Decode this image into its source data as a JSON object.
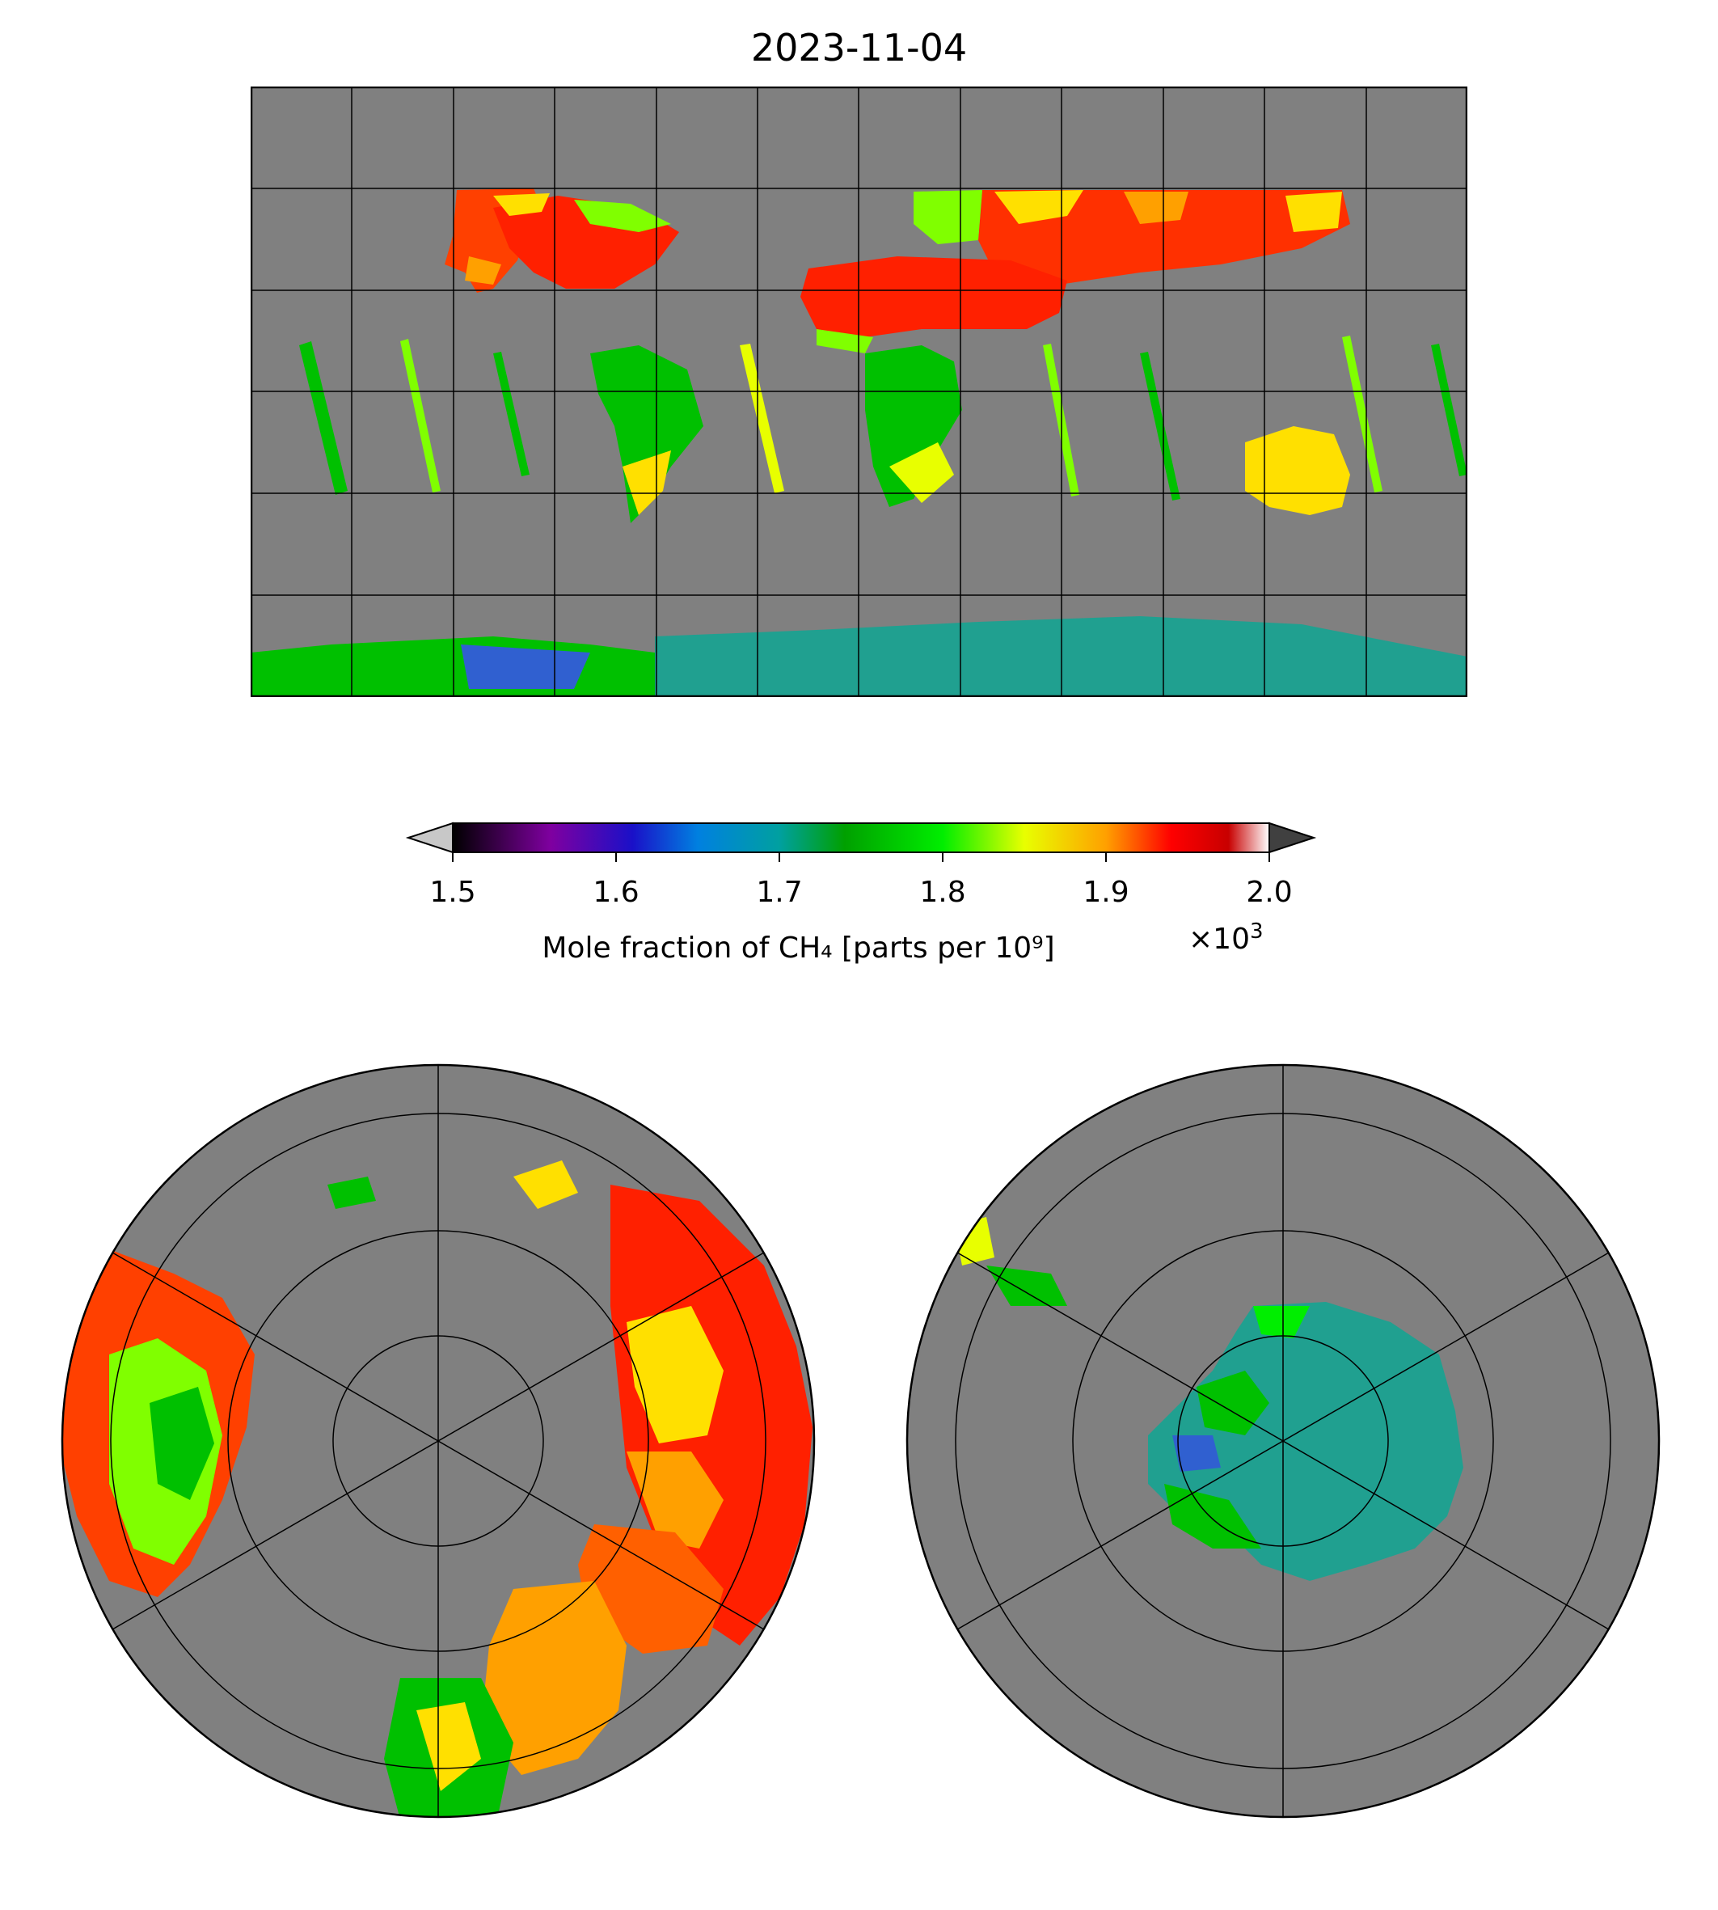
{
  "title": "2023-11-04",
  "colorbar": {
    "label": "Mole fraction of CH₄ [parts per 10⁹]",
    "multiplier": "×10",
    "multiplier_exp": "3",
    "ticks": [
      "1.5",
      "1.6",
      "1.7",
      "1.8",
      "1.9",
      "2.0"
    ],
    "range": [
      1.5,
      2.0
    ],
    "under_color": "#c8c8c8",
    "over_color": "#404040",
    "colors": [
      "#000000",
      "#5a005a",
      "#7f00a0",
      "#1a10c8",
      "#0050e0",
      "#0090d8",
      "#00a0b0",
      "#20a090",
      "#00a000",
      "#00c000",
      "#00ee00",
      "#80ff00",
      "#e8ff00",
      "#ffe000",
      "#ffa000",
      "#ff5000",
      "#ff0000",
      "#d00000",
      "#c84040",
      "#ffffff"
    ]
  },
  "maps": {
    "world": "global-map",
    "north": "north-polar-map",
    "south": "south-polar-map",
    "background_color": "#808080"
  }
}
